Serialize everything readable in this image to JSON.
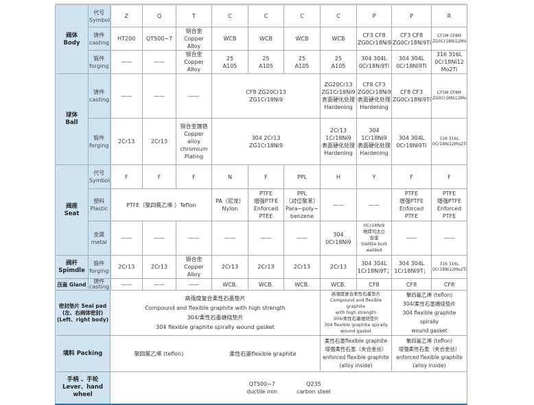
{
  "symbol": {
    "sub": "代号\nSymbol",
    "values": [
      "Z",
      "Q",
      "T",
      "C",
      "C",
      "C",
      "C",
      "P",
      "P",
      "R"
    ]
  },
  "body": {
    "label": "阀体\nBody",
    "casting": {
      "sub": "铸件\ncasting",
      "values": [
        "HT200",
        "QT500−7",
        "铜合金\nCopper Alloy",
        "WCB",
        "WCB",
        "WCB",
        "WCB",
        "CF3   CF8\nZG0Cr18Ni9Ti",
        "CF3    CF8\nZG0Cr18Ni9Ti",
        "CF3M CF8M\nZG0Cr18Ni12Mo2Ti"
      ]
    },
    "forging": {
      "sub": "锻件\nforging",
      "values": [
        "——",
        "——",
        "铜合金\nCopper Alloy",
        "25\nA105",
        "25\nA105",
        "25\nA105",
        "25\nA105",
        "304 304L\n0Cr18Ni9Ti",
        "304 304L\n0Cr18Ni9Ti",
        "316 316L\n0Cr18Ni12\nMo2Ti"
      ]
    }
  },
  "ball": {
    "label": "球体\nBall",
    "casting": {
      "sub": "铸件\ncasting",
      "values": [
        "——",
        "——",
        "——",
        "CF8   ZG20Cr13\nZG1Cr18Ni9",
        "ZG20Cr13\nZG1Cr18Ni9\n表面硬化处理\nHardening",
        "CF8   CF3\nZG0Cr18Ni9Ti\n表面硬化处理\nHardening",
        "CF8  CF3\nZG0Cr18Ni9Ti",
        "CF3M CF8M\nZG0Cr18Ni12Mo2Ti"
      ]
    },
    "forging": {
      "sub": "锻件\nforging",
      "values": [
        "2Cr13",
        "2Cr13",
        "铜合金镀铬\nCopper alloy\nchromium\nPlating",
        "304   2Cr13\nZG1Cr18Ni9",
        "2Cr13\n1Cr18Ni9\n表面硬化处理\nHardening",
        "304\n1Cr18Ni9\n表面硬化处理\nHardening",
        "304  304L\n0Cr18Ni9Ti",
        "316  316L\n0Cr18Ni12Mo2Ti"
      ]
    }
  },
  "seat": {
    "label": "阀座\nSeat",
    "symbol": {
      "sub": "代号\nSymbol",
      "values": [
        "F",
        "F",
        "F",
        "N",
        "F",
        "PPL",
        "H",
        "Y",
        "F",
        "F"
      ]
    },
    "plastic": {
      "sub": "塑料\nPlastic",
      "values": [
        "PTFE（聚四氟乙烯 ）Teflon",
        "PA（尼龙）\nNylon",
        "PTFE\n增强PTFE\nEnforced\nPTEE",
        "PPL\n（对位聚苯）\nPara−poly−\nbenzene",
        "——",
        "——",
        "PTFE\n增强PTFE\nEnforced PTFE",
        "PTFE\n增强PTFE\nEnforced\nPTFE"
      ]
    },
    "metal": {
      "sub": "金属\nmetal",
      "values": [
        "——",
        "——",
        "——",
        "——",
        "——",
        "——",
        "304\n0Cr18Ni9",
        "0Cr18Ni9\n堆焊司太立\n合金\nStellite butt\nwelded",
        "——",
        "——"
      ]
    }
  },
  "stem": {
    "label": "阀杆\nSpimdle",
    "sub": "锻件\nforging",
    "values": [
      "2Cr13",
      "2Cr13",
      "铜合金\nCopper Alloy",
      "2Cr13",
      "2Cr13",
      "2Cr13",
      "2Cr13",
      "304 304L\n1Cr18Ni9T；",
      "304 304L\n1Cr18Ni9T；",
      "316 316L\n0Cr18Ni12Mo2Ti"
    ]
  },
  "gland": {
    "label": "压盖 Gland",
    "sub": "铸件\ncasting",
    "values": [
      "——",
      "——",
      "——",
      "WCB.",
      "WCB.",
      "WCB.",
      "WCB.",
      "CF8",
      "CF8",
      "CF8"
    ]
  },
  "seal": {
    "label": "密封垫片 Seal pad\n(左、右阀体密封)\n(Left、right body)",
    "values": [
      "高强度复合柔性石墨垫片\nCompound and flexible graphite with high strength\n304/柔性石墨缠绕垫片\n304 flexible graphite spirally wound gasket",
      "高强度复合柔性石墨垫片\nCompound and flexible graphite\nwith high strength\n304/柔性石墨缠绕垫片\n304 flexible graphite spirally\nwound gasket",
      "聚四氟乙烯 (teflon)\n304/柔性石墨缠绕垫片\n304 flexible graphite spirally\nwound gasket"
    ]
  },
  "packing": {
    "label": "填料 Packing",
    "values": [
      "聚四氟乙烯 (teflon)",
      "柔性石墨flexible graphite",
      "柔性石墨flexible graphite\n增强柔性石墨（夹合金丝）\nenforced flexible graphite\n(alloy inside)",
      "聚四氟乙烯 (teflon)\n增强柔性石墨（夹合金丝）\nenforced flexible graphite\n(alloy inside)"
    ]
  },
  "lever": {
    "label": "手柄 、手轮\nLever、hand wheel",
    "values": [
      "QT500−7\nductile iron",
      "Q235\ncarbon steel"
    ]
  }
}
